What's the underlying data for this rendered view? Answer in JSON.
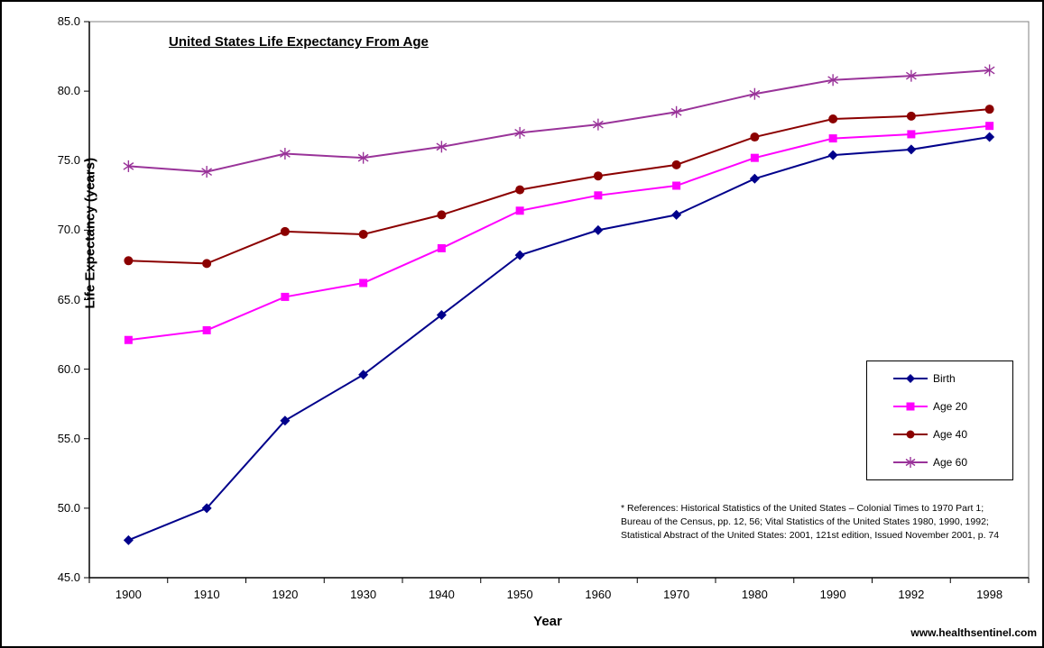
{
  "page": {
    "website": "www.healthsentinel.com"
  },
  "chart_data": {
    "type": "line",
    "title": "United States Life Expectancy From Age",
    "xlabel": "Year",
    "ylabel": "Life Expectancy (years)",
    "ylim": [
      45.0,
      85.0
    ],
    "ytick_step": 5.0,
    "grid": false,
    "legend_position": "middle-right",
    "categories": [
      "1900",
      "1910",
      "1920",
      "1930",
      "1940",
      "1950",
      "1960",
      "1970",
      "1980",
      "1990",
      "1992",
      "1998"
    ],
    "series": [
      {
        "name": "Birth",
        "marker": "diamond",
        "color": "#00008B",
        "values": [
          47.7,
          50.0,
          56.3,
          59.6,
          63.9,
          68.2,
          70.0,
          71.1,
          73.7,
          75.4,
          75.8,
          76.7
        ]
      },
      {
        "name": "Age 20",
        "marker": "square",
        "color": "#FF00FF",
        "values": [
          62.1,
          62.8,
          65.2,
          66.2,
          68.7,
          71.4,
          72.5,
          73.2,
          75.2,
          76.6,
          76.9,
          77.5
        ]
      },
      {
        "name": "Age 40",
        "marker": "circle",
        "color": "#8B0000",
        "values": [
          67.8,
          67.6,
          69.9,
          69.7,
          71.1,
          72.9,
          73.9,
          74.7,
          76.7,
          78.0,
          78.2,
          78.7
        ]
      },
      {
        "name": "Age 60",
        "marker": "star",
        "color": "#993399",
        "values": [
          74.6,
          74.2,
          75.5,
          75.2,
          76.0,
          77.0,
          77.6,
          78.5,
          79.8,
          80.8,
          81.1,
          81.5
        ]
      }
    ]
  },
  "references": {
    "lines": [
      "* References: Historical Statistics of the United States – Colonial Times to 1970 Part 1;",
      "Bureau of the Census, pp. 12, 56; Vital Statistics of the United States 1980, 1990, 1992;",
      "Statistical Abstract of the United States: 2001, 121st edition, Issued November 2001, p. 74"
    ]
  }
}
